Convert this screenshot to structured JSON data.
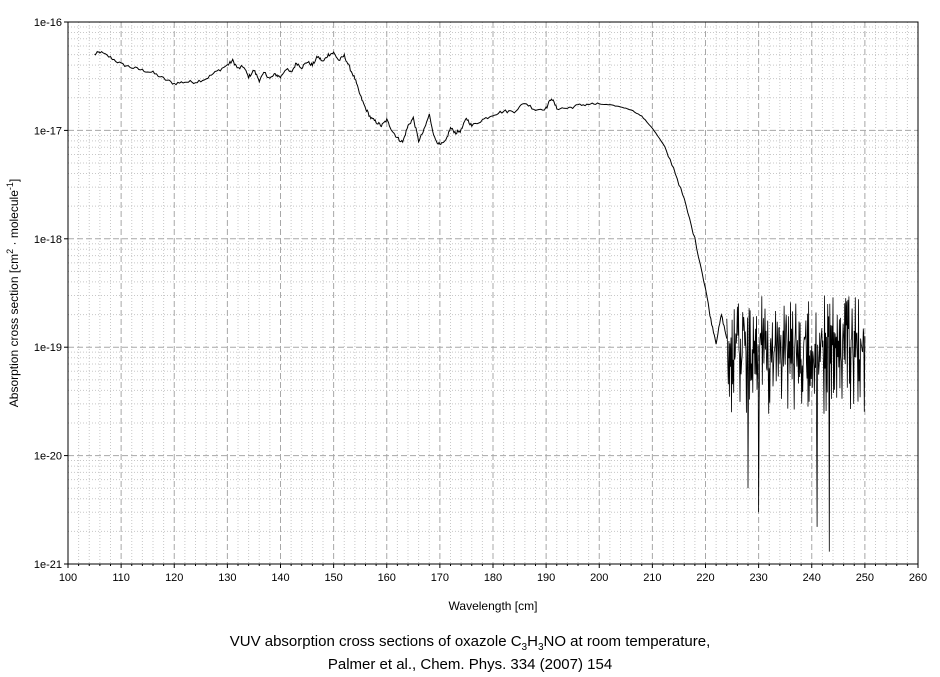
{
  "chart_data": {
    "type": "line",
    "xlabel": "Wavelength [cm]",
    "ylabel_main": "Absorption cross section [cm",
    "ylabel_sup1": "2",
    "ylabel_mid": " · molecule",
    "ylabel_sup2": "-1",
    "ylabel_end": "]",
    "xlim": [
      100,
      260
    ],
    "ylim": [
      1e-21,
      1e-16
    ],
    "yscale": "log",
    "grid": true,
    "x_ticks": [
      100,
      110,
      120,
      130,
      140,
      150,
      160,
      170,
      180,
      190,
      200,
      210,
      220,
      230,
      240,
      250,
      260
    ],
    "x_tick_labels": [
      "100",
      "110",
      "120",
      "130",
      "140",
      "150",
      "160",
      "170",
      "180",
      "190",
      "200",
      "210",
      "220",
      "230",
      "240",
      "250",
      "260"
    ],
    "y_ticks": [
      1e-16,
      1e-17,
      1e-18,
      1e-19,
      1e-20,
      1e-21
    ],
    "y_tick_labels": [
      "1e-16",
      "1e-17",
      "1e-18",
      "1e-19",
      "1e-20",
      "1e-21"
    ],
    "series": [
      {
        "color": "#000000",
        "x": [
          105,
          106,
          108,
          110,
          112,
          114,
          116,
          118,
          120,
          122,
          124,
          126,
          128,
          130,
          131,
          132,
          133,
          134,
          135,
          136,
          137,
          138,
          139,
          140,
          141,
          142,
          143,
          144,
          145,
          146,
          147,
          148,
          149,
          150,
          151,
          152,
          153,
          154,
          155,
          156,
          157,
          158,
          159,
          160,
          161,
          162,
          163,
          164,
          165,
          166,
          167,
          168,
          169,
          170,
          171,
          172,
          173,
          174,
          175,
          176,
          178,
          180,
          182,
          184,
          186,
          188,
          190,
          191,
          192,
          194,
          196,
          198,
          200,
          202,
          204,
          206,
          208,
          210,
          212,
          214,
          216,
          218,
          220,
          221,
          222,
          223,
          224
        ],
        "y": [
          5e-17,
          5.3e-17,
          4.7e-17,
          4.1e-17,
          3.8e-17,
          3.6e-17,
          3.4e-17,
          3e-17,
          2.7e-17,
          2.8e-17,
          2.8e-17,
          3e-17,
          3.5e-17,
          4e-17,
          4.4e-17,
          3.7e-17,
          3.9e-17,
          3.1e-17,
          3.6e-17,
          2.9e-17,
          3.4e-17,
          3e-17,
          3.3e-17,
          3.1e-17,
          3.7e-17,
          3.4e-17,
          4.2e-17,
          3.8e-17,
          4.3e-17,
          4e-17,
          4.8e-17,
          4.3e-17,
          5e-17,
          5.2e-17,
          4.4e-17,
          4.9e-17,
          3.8e-17,
          3e-17,
          2.1e-17,
          1.6e-17,
          1.3e-17,
          1.2e-17,
          1.1e-17,
          1.25e-17,
          1e-17,
          8.5e-18,
          7.8e-18,
          1.1e-17,
          1.3e-17,
          8e-18,
          1e-17,
          1.4e-17,
          8.5e-18,
          7.3e-18,
          7.8e-18,
          1.05e-17,
          9.5e-18,
          1e-17,
          1.3e-17,
          1.1e-17,
          1.25e-17,
          1.4e-17,
          1.5e-17,
          1.5e-17,
          1.8e-17,
          1.55e-17,
          1.6e-17,
          2e-17,
          1.6e-17,
          1.6e-17,
          1.7e-17,
          1.75e-17,
          1.75e-17,
          1.72e-17,
          1.65e-17,
          1.55e-17,
          1.35e-17,
          1.05e-17,
          7.5e-18,
          4.5e-18,
          2.3e-18,
          1e-18,
          3.5e-19,
          1.8e-19,
          1.1e-19,
          2e-19,
          1.2e-19
        ]
      },
      {
        "color": "#000000",
        "x_range": [
          224,
          250
        ],
        "upper_envelope": 3e-19,
        "lower_envelope": 1.5e-20,
        "deep_minima": [
          [
            228,
            5e-21
          ],
          [
            230,
            3e-21
          ],
          [
            241,
            2.2e-21
          ],
          [
            243.3,
            1.3e-21
          ]
        ]
      }
    ]
  },
  "caption": {
    "line1_a": "VUV absorption cross sections of oxazole C",
    "line1_sub1": "3",
    "line1_b": "H",
    "line1_sub2": "3",
    "line1_c": "NO at room temperature,",
    "line2": "Palmer et al., Chem. Phys. 334 (2007) 154"
  }
}
